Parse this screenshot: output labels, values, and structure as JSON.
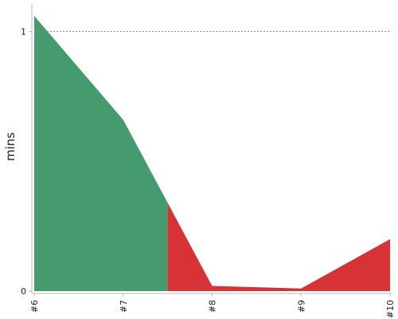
{
  "chart_data": {
    "type": "area",
    "ylabel": "mins",
    "categories": [
      "#6",
      "#7",
      "#8",
      "#9",
      "#10"
    ],
    "x": [
      6,
      7,
      8,
      9,
      10
    ],
    "values": [
      1.06,
      0.66,
      0.02,
      0.01,
      0.2
    ],
    "ylim": [
      0,
      1.06
    ],
    "xlim": [
      6,
      10
    ],
    "y_ticks": [
      {
        "value": 0,
        "label": "0"
      },
      {
        "value": 1,
        "label": "1"
      }
    ],
    "reference_line": {
      "value": 1,
      "style": "dashed"
    },
    "split_x": 7.5,
    "colors": {
      "before_split": "#459b6e",
      "after_split": "#d73337"
    },
    "grid": false
  }
}
